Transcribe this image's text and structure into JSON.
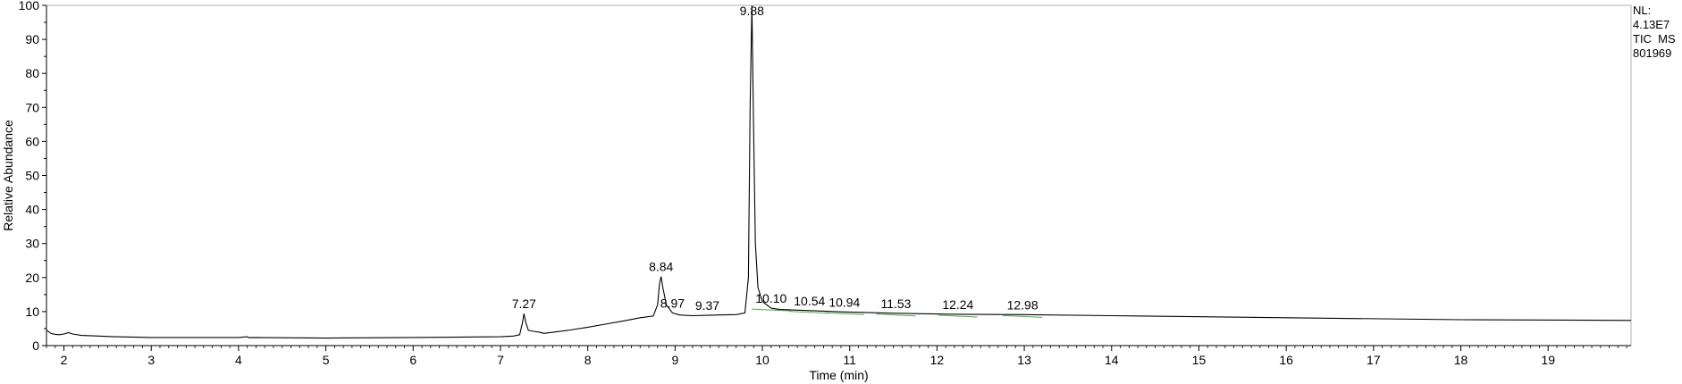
{
  "chart_data": {
    "type": "line",
    "xlabel": "Time (min)",
    "ylabel": "Relative Abundance",
    "xlim": [
      1.8,
      19.95
    ],
    "ylim": [
      0,
      100
    ],
    "x_ticks": [
      2,
      3,
      4,
      5,
      6,
      7,
      8,
      9,
      10,
      11,
      12,
      13,
      14,
      15,
      16,
      17,
      18,
      19
    ],
    "y_ticks": [
      0,
      10,
      20,
      30,
      40,
      50,
      60,
      70,
      80,
      90,
      100
    ],
    "grid": false,
    "series": [
      {
        "x": [
          1.8,
          1.85,
          1.9,
          1.95,
          2.0,
          2.05,
          2.1,
          2.2,
          2.4,
          2.6,
          3.0,
          4.0,
          4.1,
          4.12,
          4.14,
          5.0,
          6.0,
          7.0,
          7.15,
          7.22,
          7.25,
          7.27,
          7.29,
          7.32,
          7.38,
          7.45,
          7.5,
          7.6,
          7.8,
          8.0,
          8.2,
          8.4,
          8.6,
          8.75,
          8.8,
          8.82,
          8.84,
          8.86,
          8.9,
          8.97,
          9.05,
          9.2,
          9.37,
          9.5,
          9.7,
          9.8,
          9.84,
          9.86,
          9.88,
          9.9,
          9.92,
          9.95,
          10.0,
          10.1,
          10.2,
          10.54,
          10.94,
          11.53,
          12.24,
          12.98,
          14.0,
          16.0,
          18.0,
          19.95
        ],
        "y": [
          4.6,
          3.6,
          3.3,
          3.2,
          3.4,
          3.8,
          3.4,
          3.0,
          2.8,
          2.6,
          2.4,
          2.4,
          2.6,
          2.3,
          2.4,
          2.2,
          2.4,
          2.6,
          2.8,
          3.2,
          6.5,
          9.4,
          6.8,
          4.5,
          4.2,
          3.9,
          3.6,
          3.9,
          4.6,
          5.4,
          6.3,
          7.2,
          8.2,
          8.7,
          12.0,
          18.0,
          20.3,
          17.0,
          12.0,
          9.6,
          9.0,
          8.8,
          8.9,
          9.0,
          9.1,
          9.6,
          20.0,
          70.0,
          100.0,
          62.0,
          30.0,
          17.0,
          13.0,
          11.0,
          10.6,
          10.3,
          9.9,
          9.5,
          9.2,
          9.1,
          8.8,
          8.2,
          7.6,
          7.4
        ]
      }
    ],
    "peak_labels": [
      {
        "x": 7.27,
        "y": 9.4,
        "label": "7.27"
      },
      {
        "x": 8.84,
        "y": 20.3,
        "label": "8.84"
      },
      {
        "x": 8.97,
        "y": 9.6,
        "label": "8.97"
      },
      {
        "x": 9.37,
        "y": 8.9,
        "label": "9.37"
      },
      {
        "x": 9.88,
        "y": 100.0,
        "label": "9.88"
      },
      {
        "x": 10.1,
        "y": 11.0,
        "label": "10.10"
      },
      {
        "x": 10.54,
        "y": 10.3,
        "label": "10.54"
      },
      {
        "x": 10.94,
        "y": 9.9,
        "label": "10.94"
      },
      {
        "x": 11.53,
        "y": 9.5,
        "label": "11.53"
      },
      {
        "x": 12.24,
        "y": 9.2,
        "label": "12.24"
      },
      {
        "x": 12.98,
        "y": 9.1,
        "label": "12.98"
      }
    ],
    "info_lines": [
      "NL:",
      "4.13E7",
      "TIC  MS",
      "801969"
    ]
  },
  "colors": {
    "trace": "#000000",
    "axis": "#000000",
    "baseline": "#4caf50"
  }
}
